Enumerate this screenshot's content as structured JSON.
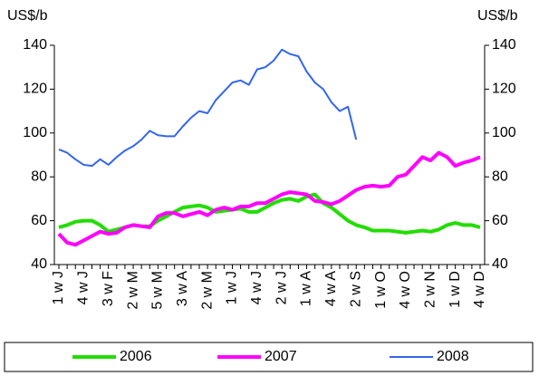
{
  "chart_data": {
    "type": "line",
    "ylabel": "US$/b",
    "y2label": "US$/b",
    "categories": [
      "1 w J",
      null,
      null,
      "4 w J",
      null,
      null,
      "3 w F",
      null,
      null,
      "2 w M",
      null,
      null,
      "5 w M",
      null,
      null,
      "3 w A",
      null,
      null,
      "2 w M",
      null,
      null,
      "1 w J",
      null,
      null,
      "4 w J",
      null,
      null,
      "2 w J",
      null,
      null,
      "1 w A",
      null,
      null,
      "4 w A",
      null,
      null,
      "2 w S",
      null,
      null,
      "1 w O",
      null,
      null,
      "4 w O",
      null,
      null,
      "2 w N",
      null,
      null,
      "1 w D",
      null,
      null,
      "4 w D"
    ],
    "series": [
      {
        "name": "2006",
        "color": "#22dd00",
        "values": [
          57,
          58,
          59.5,
          60,
          60,
          58,
          55,
          56,
          57,
          58,
          57.5,
          57.5,
          60,
          62,
          64,
          66,
          66.5,
          67,
          66,
          64,
          64.5,
          65,
          65.5,
          64,
          64,
          66,
          68,
          69.5,
          70,
          69,
          71,
          72,
          68,
          66,
          63,
          60,
          58,
          57,
          55.5,
          55.5,
          55.5,
          55,
          54.5,
          55,
          55.5,
          55,
          56,
          58,
          59,
          58,
          58,
          57
        ]
      },
      {
        "name": "2007",
        "color": "#ff00ff",
        "values": [
          54,
          50,
          49,
          51,
          53,
          55,
          54,
          54.5,
          57,
          58,
          57.5,
          57,
          62,
          63.5,
          63.5,
          62,
          63,
          64,
          62.5,
          65,
          66,
          65,
          66.5,
          66.5,
          68,
          68,
          70,
          72,
          73,
          72.5,
          72,
          69,
          68.5,
          67.5,
          69,
          71.5,
          74,
          75.5,
          76,
          75.5,
          76,
          80,
          81,
          85,
          89,
          87.5,
          91,
          89,
          85,
          86.5,
          87.5,
          89
        ]
      },
      {
        "name": "2008",
        "color": "#3366ee",
        "values": [
          92.5,
          91,
          88,
          85.5,
          85,
          88,
          85.5,
          89,
          92,
          94,
          97,
          101,
          99,
          98.5,
          98.5,
          103,
          107,
          110,
          109,
          115,
          119,
          123,
          124,
          122,
          129,
          130,
          133,
          138,
          136,
          135,
          128,
          123,
          120,
          114,
          110,
          112,
          97,
          null,
          null,
          null,
          null,
          null,
          null,
          null,
          null,
          null,
          null,
          null,
          null,
          null,
          null,
          null
        ]
      }
    ],
    "ylim": [
      40,
      140
    ],
    "yticks": [
      40,
      60,
      80,
      100,
      120,
      140
    ],
    "y2lim": [
      40,
      140
    ],
    "y2ticks": [
      40,
      60,
      80,
      100,
      120,
      140
    ],
    "legend": "bottom"
  }
}
